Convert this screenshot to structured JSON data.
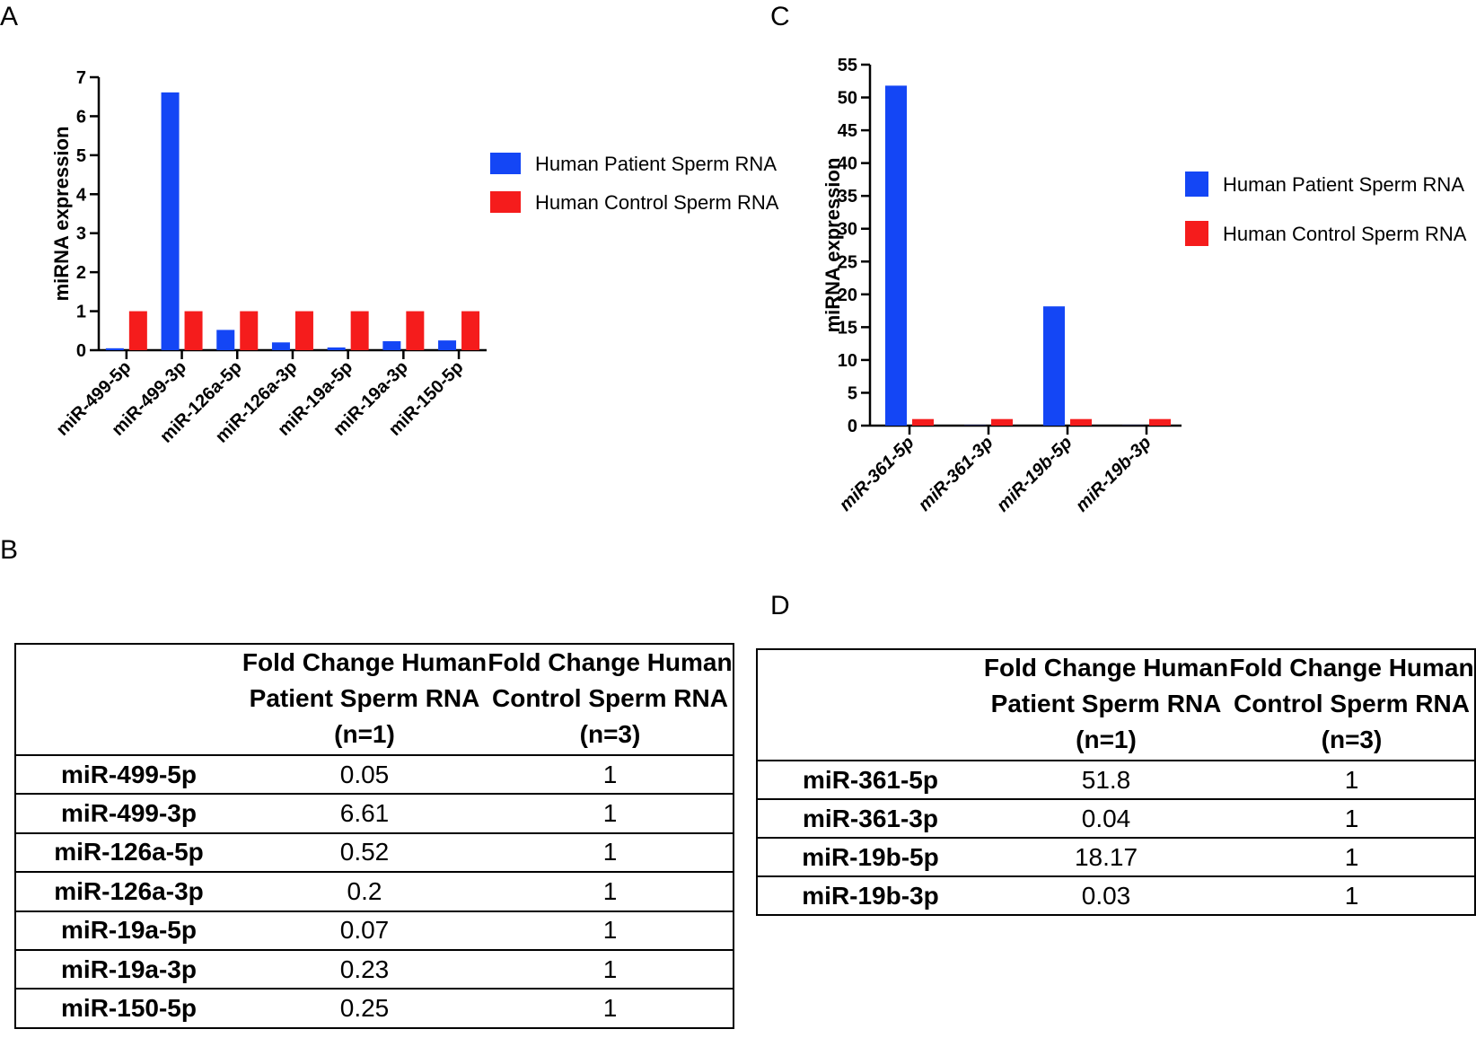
{
  "panels": {
    "a": "A",
    "b": "B",
    "c": "C",
    "d": "D"
  },
  "colors": {
    "patient": "#1446f5",
    "control": "#f51c1c"
  },
  "chart_data": [
    {
      "panel": "A",
      "type": "bar",
      "ylabel": "miRNA expression",
      "ylim": [
        0,
        7
      ],
      "yticks": [
        0,
        1,
        2,
        3,
        4,
        5,
        6,
        7
      ],
      "categories": [
        "miR-499-5p",
        "miR-499-3p",
        "miR-126a-5p",
        "miR-126a-3p",
        "miR-19a-5p",
        "miR-19a-3p",
        "miR-150-5p"
      ],
      "series": [
        {
          "name": "Human Patient Sperm RNA",
          "values": [
            0.05,
            6.61,
            0.52,
            0.2,
            0.07,
            0.23,
            0.25
          ]
        },
        {
          "name": "Human Control Sperm RNA",
          "values": [
            1,
            1,
            1,
            1,
            1,
            1,
            1
          ]
        }
      ],
      "legend": "right"
    },
    {
      "panel": "C",
      "type": "bar",
      "ylabel": "miRNA expression",
      "ylim": [
        0,
        55
      ],
      "yticks": [
        0,
        5,
        10,
        15,
        20,
        25,
        30,
        35,
        40,
        45,
        50,
        55
      ],
      "categories": [
        "miR-361-5p",
        "miR-361-3p",
        "miR-19b-5p",
        "miR-19b-3p"
      ],
      "series": [
        {
          "name": "Human Patient Sperm RNA",
          "values": [
            51.8,
            0.04,
            18.17,
            0.03
          ]
        },
        {
          "name": "Human Control Sperm RNA",
          "values": [
            1,
            1,
            1,
            1
          ]
        }
      ],
      "legend": "right"
    }
  ],
  "table_b": {
    "headers": [
      "",
      "Fold Change Human Patient Sperm RNA (n=1)",
      "Fold Change Human Control Sperm RNA (n=3)"
    ],
    "rows": [
      [
        "miR-499-5p",
        "0.05",
        "1"
      ],
      [
        "miR-499-3p",
        "6.61",
        "1"
      ],
      [
        "miR-126a-5p",
        "0.52",
        "1"
      ],
      [
        "miR-126a-3p",
        "0.2",
        "1"
      ],
      [
        "miR-19a-5p",
        "0.07",
        "1"
      ],
      [
        "miR-19a-3p",
        "0.23",
        "1"
      ],
      [
        "miR-150-5p",
        "0.25",
        "1"
      ]
    ]
  },
  "table_d": {
    "headers": [
      "",
      "Fold Change Human Patient Sperm RNA (n=1)",
      "Fold Change Human Control Sperm RNA (n=3)"
    ],
    "rows": [
      [
        "miR-361-5p",
        "51.8",
        "1"
      ],
      [
        "miR-361-3p",
        "0.04",
        "1"
      ],
      [
        "miR-19b-5p",
        "18.17",
        "1"
      ],
      [
        "miR-19b-3p",
        "0.03",
        "1"
      ]
    ]
  }
}
